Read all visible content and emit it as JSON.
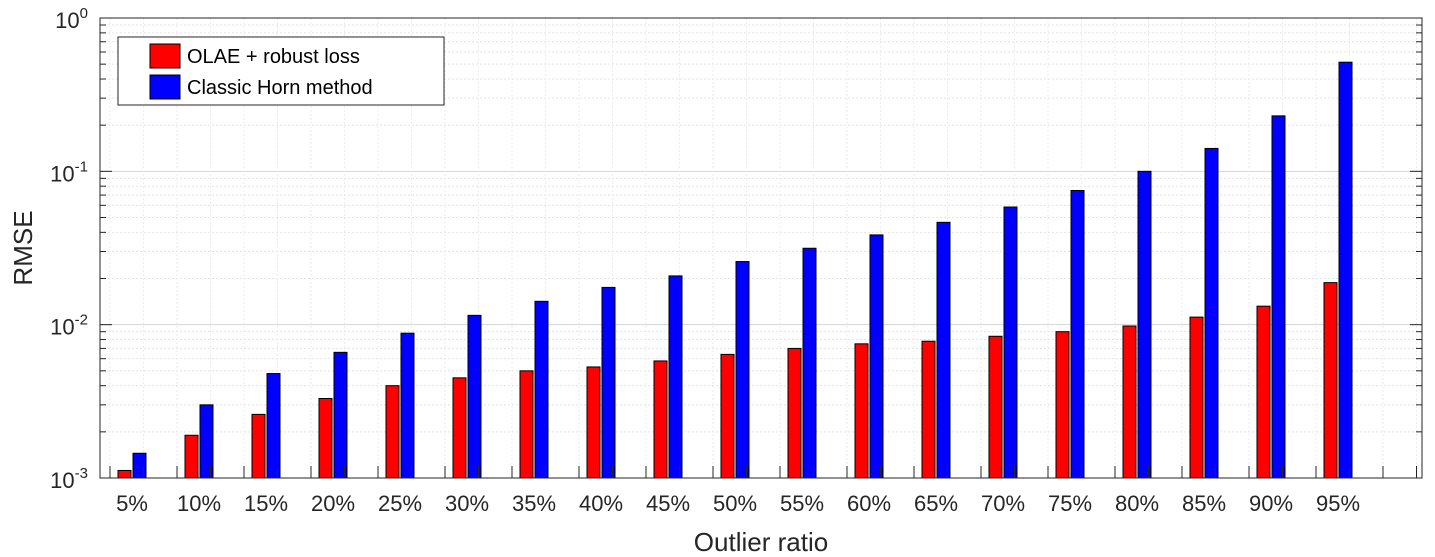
{
  "chart_data": {
    "type": "bar",
    "xlabel": "Outlier ratio",
    "ylabel": "RMSE",
    "yscale": "log",
    "ylim": [
      0.001,
      1
    ],
    "grid": true,
    "legend_position": "top-left",
    "categories": [
      "5%",
      "10%",
      "15%",
      "20%",
      "25%",
      "30%",
      "35%",
      "40%",
      "45%",
      "50%",
      "55%",
      "60%",
      "65%",
      "70%",
      "75%",
      "80%",
      "85%",
      "90%",
      "95%"
    ],
    "series": [
      {
        "name": "OLAE + robust loss",
        "color": "#ff0000",
        "values": [
          0.00112,
          0.0019,
          0.0026,
          0.0033,
          0.004,
          0.0045,
          0.005,
          0.0053,
          0.0058,
          0.0064,
          0.007,
          0.0075,
          0.0078,
          0.0084,
          0.009,
          0.0098,
          0.0112,
          0.0132,
          0.0188
        ]
      },
      {
        "name": "Classic Horn method",
        "color": "#0000ff",
        "values": [
          0.00145,
          0.003,
          0.0048,
          0.0066,
          0.0088,
          0.0115,
          0.0142,
          0.0175,
          0.0208,
          0.0258,
          0.0315,
          0.0385,
          0.0465,
          0.0585,
          0.075,
          0.1,
          0.141,
          0.23,
          0.515
        ]
      }
    ],
    "y_ticks": [
      {
        "base": "10",
        "exp": "-3"
      },
      {
        "base": "10",
        "exp": "-2"
      },
      {
        "base": "10",
        "exp": "-1"
      },
      {
        "base": "10",
        "exp": "0"
      }
    ]
  }
}
